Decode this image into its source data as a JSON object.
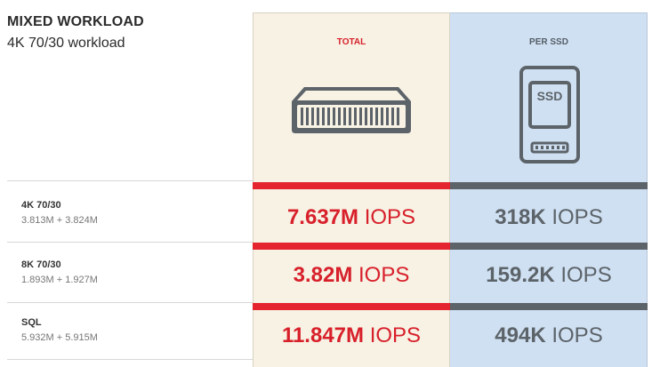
{
  "header": {
    "title": "MIXED WORKLOAD",
    "subtitle": "4K 70/30 workload"
  },
  "columns": {
    "total": "TOTAL",
    "per_ssd": "PER SSD"
  },
  "ssd_icon_label": "SSD",
  "rows": [
    {
      "name": "4K 70/30",
      "detail": "3.813M + 3.824M",
      "total_value": "7.637M",
      "per_ssd_value": "318K",
      "unit": "IOPS"
    },
    {
      "name": "8K 70/30",
      "detail": "1.893M + 1.927M",
      "total_value": "3.82M",
      "per_ssd_value": "159.2K",
      "unit": "IOPS"
    },
    {
      "name": "SQL",
      "detail": "5.932M + 5.915M",
      "total_value": "11.847M",
      "per_ssd_value": "494K",
      "unit": "IOPS"
    }
  ],
  "colors": {
    "accent_red": "#e4242e",
    "accent_grey": "#5c6369",
    "total_bg": "#f7f2e4",
    "ssd_bg": "#cfe0f2"
  },
  "icons": {
    "total": "server-chassis-icon",
    "per_ssd": "ssd-drive-icon"
  }
}
